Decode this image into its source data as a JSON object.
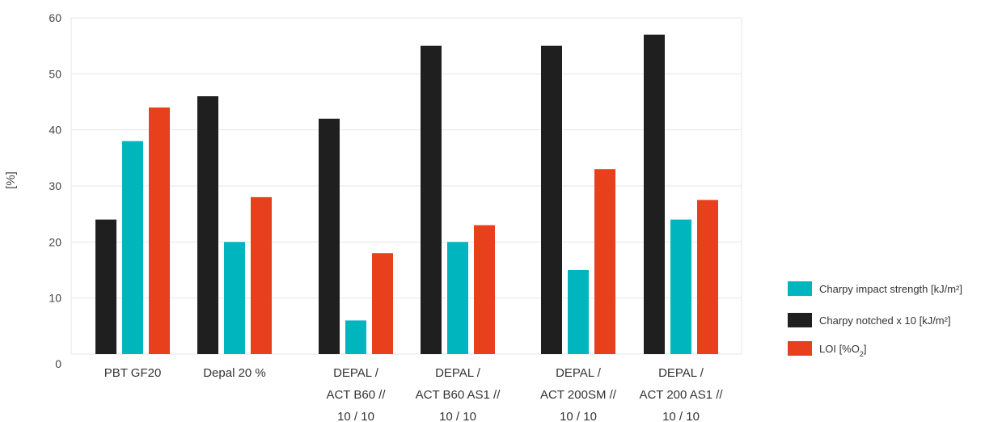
{
  "chart_data": {
    "type": "bar",
    "title": "",
    "xlabel": "",
    "ylabel": "[%]",
    "ylim": [
      0,
      60
    ],
    "yticks": [
      0,
      10,
      20,
      30,
      40,
      50,
      60
    ],
    "grid": true,
    "legend_position": "right",
    "categories": [
      [
        "PBT GF20"
      ],
      [
        "Depal 20 %"
      ],
      [
        "DEPAL /",
        "ACT B60 //",
        "10 / 10"
      ],
      [
        "DEPAL /",
        "ACT B60 AS1 //",
        "10 / 10"
      ],
      [
        "DEPAL /",
        "ACT 200SM //",
        "10 / 10"
      ],
      [
        "DEPAL /",
        "ACT 200 AS1 //",
        "10 / 10"
      ]
    ],
    "series": [
      {
        "name": "Charpy notched x 10 [kJ/m²]",
        "color": "#1f1f1f",
        "values": [
          24,
          46,
          42,
          55,
          55,
          57
        ]
      },
      {
        "name": "Charpy impact strength [kJ/m²]",
        "color": "#00b5bd",
        "values": [
          38,
          20,
          6,
          20,
          15,
          24
        ]
      },
      {
        "name": "LOI [%O2]",
        "color": "#e8401c",
        "values": [
          44,
          28,
          18,
          23,
          33,
          27.5
        ]
      }
    ],
    "legend": [
      {
        "label": "Charpy impact strength [kJ/m²]",
        "color": "#00b5bd"
      },
      {
        "label": "Charpy notched x 10 [kJ/m²]",
        "color": "#1f1f1f"
      },
      {
        "label": "LOI [%O",
        "sub": "2",
        "suffix": "]",
        "color": "#e8401c"
      }
    ]
  }
}
